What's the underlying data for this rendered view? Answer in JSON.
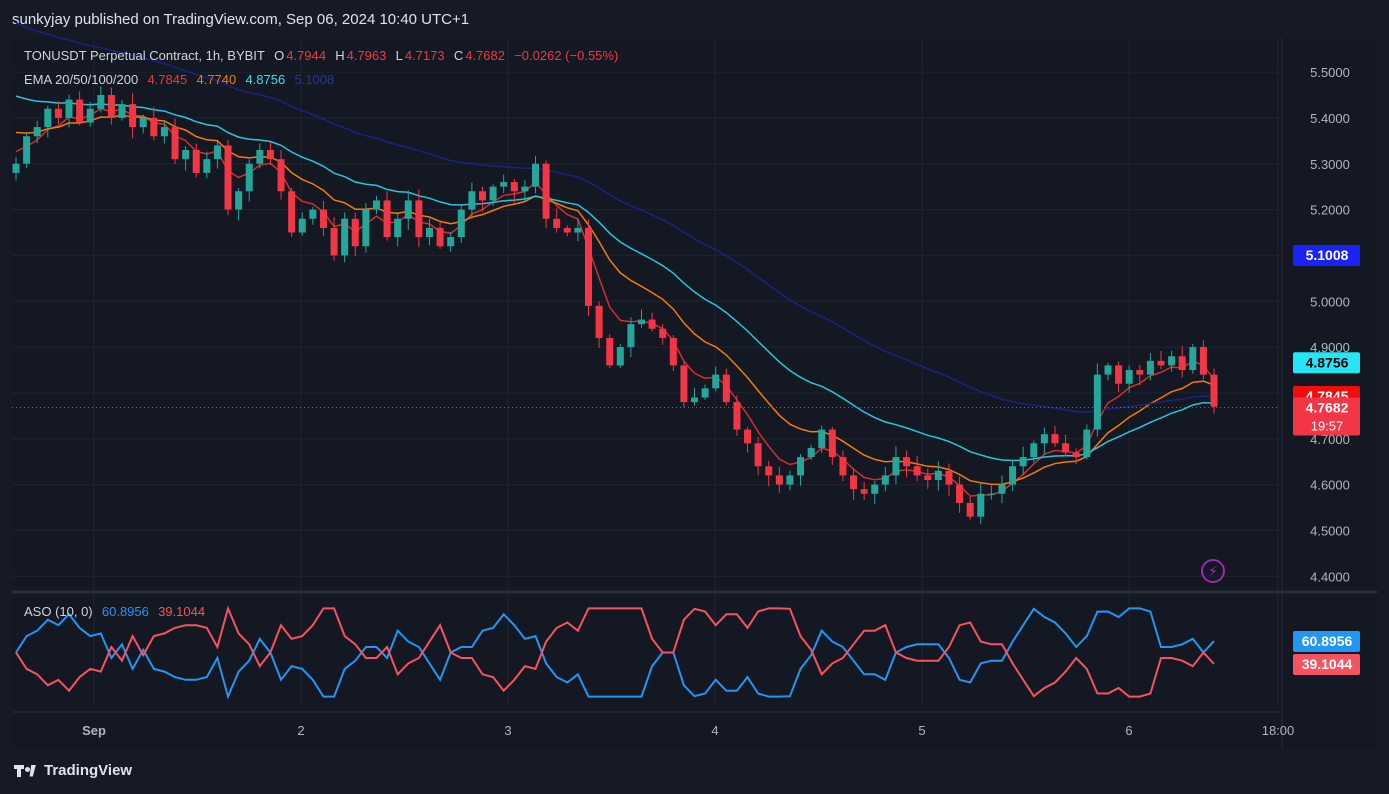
{
  "header": {
    "published": "sunkyjay published on TradingView.com, Sep 06, 2024 10:40 UTC+1"
  },
  "legend": {
    "symbol": "TONUSDT Perpetual Contract, 1h, BYBIT",
    "o_label": "O",
    "o": "4.7944",
    "h_label": "H",
    "h": "4.7963",
    "l_label": "L",
    "l": "4.7173",
    "c_label": "C",
    "c": "4.7682",
    "change": "−0.0262 (−0.55%)",
    "ema_label": "EMA 20/50/100/200",
    "ema20": "4.7845",
    "ema50": "4.7740",
    "ema100": "4.8756",
    "ema200": "5.1008",
    "aso_label": "ASO (10, 0)",
    "aso_bull": "60.8956",
    "aso_bear": "39.1044"
  },
  "colors": {
    "up": "#26a69a",
    "down": "#f23645",
    "ema20": "#d32f2f",
    "ema50": "#f57c00",
    "ema100": "#26c6da",
    "ema200": "#1a237e",
    "aso_bull": "#2196f3",
    "aso_bear": "#f7525f"
  },
  "countdown": "19:57",
  "icons": {
    "flash": "flash-icon",
    "logo": "tradingview-logo-icon"
  },
  "brand": "TradingView",
  "chart_data": {
    "type": "candlestick",
    "price_axis": {
      "ticks": [
        "5.5000",
        "5.4000",
        "5.3000",
        "5.2000",
        "5.1000",
        "5.0000",
        "4.9000",
        "4.8000",
        "4.7000",
        "4.6000",
        "4.5000",
        "4.4000"
      ],
      "ylim": [
        4.37,
        5.57
      ]
    },
    "time_axis": {
      "ticks": [
        "Sep",
        "2",
        "3",
        "4",
        "5",
        "6",
        "18:00"
      ]
    },
    "price_labels": [
      {
        "value": 5.1008,
        "text": "5.1008",
        "color": "#1a23f5",
        "text_color": "#ffffff"
      },
      {
        "value": 4.8756,
        "text": "4.8756",
        "color": "#26e5f5",
        "text_color": "#000000"
      },
      {
        "value": 4.7845,
        "text": "4.7845",
        "color": "#f20d0d",
        "text_color": "#ffffff"
      },
      {
        "value": 4.774,
        "text": "4.7740",
        "color": "#f57c00",
        "text_color": "#000000"
      },
      {
        "value": 4.7682,
        "text": "4.7682",
        "color": "#f23645",
        "text_color": "#ffffff"
      }
    ],
    "aso_labels": [
      {
        "value": 60.8956,
        "text": "60.8956",
        "color": "#2196f3"
      },
      {
        "value": 39.1044,
        "text": "39.1044",
        "color": "#f7525f"
      }
    ],
    "close_path": [
      5.3,
      5.36,
      5.38,
      5.42,
      5.4,
      5.44,
      5.39,
      5.42,
      5.45,
      5.4,
      5.43,
      5.38,
      5.4,
      5.36,
      5.38,
      5.31,
      5.33,
      5.28,
      5.31,
      5.34,
      5.2,
      5.24,
      5.3,
      5.33,
      5.31,
      5.24,
      5.15,
      5.18,
      5.2,
      5.16,
      5.1,
      5.18,
      5.12,
      5.2,
      5.22,
      5.14,
      5.18,
      5.22,
      5.14,
      5.16,
      5.12,
      5.14,
      5.2,
      5.24,
      5.22,
      5.25,
      5.26,
      5.24,
      5.25,
      5.3,
      5.18,
      5.16,
      5.15,
      5.16,
      4.99,
      4.92,
      4.86,
      4.9,
      4.95,
      4.96,
      4.94,
      4.92,
      4.86,
      4.78,
      4.79,
      4.81,
      4.84,
      4.78,
      4.72,
      4.69,
      4.64,
      4.62,
      4.6,
      4.62,
      4.66,
      4.68,
      4.72,
      4.66,
      4.62,
      4.59,
      4.58,
      4.6,
      4.62,
      4.66,
      4.64,
      4.62,
      4.61,
      4.63,
      4.6,
      4.56,
      4.53,
      4.58,
      4.58,
      4.6,
      4.64,
      4.66,
      4.69,
      4.71,
      4.69,
      4.67,
      4.66,
      4.72,
      4.84,
      4.86,
      4.82,
      4.85,
      4.84,
      4.87,
      4.86,
      4.88,
      4.85,
      4.9,
      4.84,
      4.77
    ]
  }
}
